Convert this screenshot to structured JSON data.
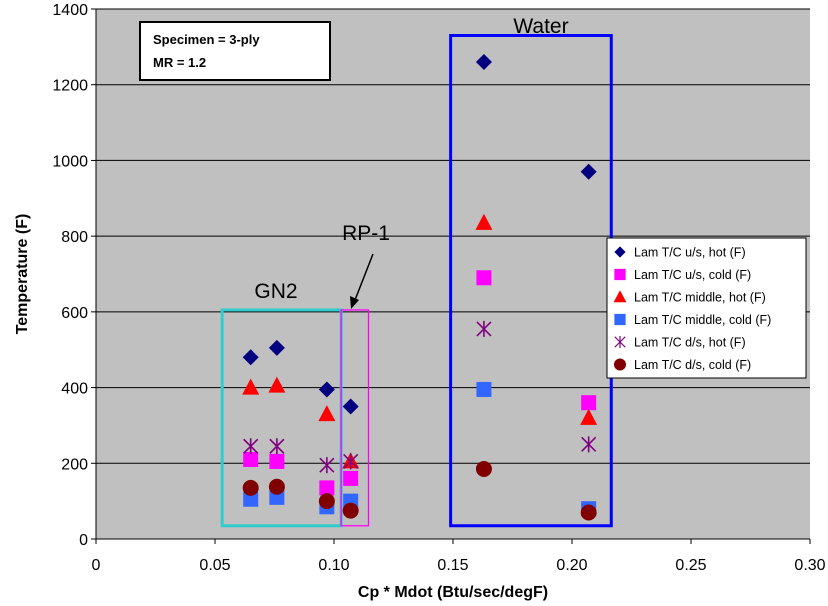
{
  "chart_data": {
    "type": "scatter",
    "title": "",
    "xlabel": "Cp * Mdot (Btu/sec/degF)",
    "ylabel": "Temperature (F)",
    "xlim": [
      0,
      0.3
    ],
    "ylim": [
      0,
      1400
    ],
    "xticks": [
      0,
      0.05,
      0.1,
      0.15,
      0.2,
      0.25,
      0.3
    ],
    "xtick_labels": [
      "0",
      "0.05",
      "0.10",
      "0.15",
      "0.20",
      "0.25",
      "0.30"
    ],
    "yticks": [
      0,
      200,
      400,
      600,
      800,
      1000,
      1200,
      1400
    ],
    "ytick_labels": [
      "0",
      "200",
      "400",
      "600",
      "800",
      "1000",
      "1200",
      "1400"
    ],
    "grid": "horizontal",
    "plot_background": "#c0c0c0",
    "legend_position": "right",
    "series": [
      {
        "name": "Lam T/C u/s, hot (F)",
        "marker": "diamond",
        "color": "#000080",
        "x": [
          0.065,
          0.076,
          0.097,
          0.107,
          0.163,
          0.207
        ],
        "y": [
          480,
          505,
          395,
          350,
          1260,
          970
        ]
      },
      {
        "name": "Lam T/C u/s, cold (F)",
        "marker": "square",
        "color": "#ff00ff",
        "x": [
          0.065,
          0.076,
          0.097,
          0.107,
          0.163,
          0.207
        ],
        "y": [
          210,
          205,
          135,
          160,
          690,
          360
        ]
      },
      {
        "name": "Lam T/C middle, hot (F)",
        "marker": "triangle",
        "color": "#ff0000",
        "x": [
          0.065,
          0.076,
          0.097,
          0.107,
          0.163,
          0.207
        ],
        "y": [
          400,
          405,
          330,
          205,
          835,
          320
        ]
      },
      {
        "name": "Lam T/C middle, cold (F)",
        "marker": "square",
        "color": "#3366ff",
        "x": [
          0.065,
          0.076,
          0.097,
          0.107,
          0.163,
          0.207
        ],
        "y": [
          105,
          110,
          85,
          100,
          395,
          80
        ]
      },
      {
        "name": "Lam T/C d/s, hot (F)",
        "marker": "star",
        "color": "#800080",
        "x": [
          0.065,
          0.076,
          0.097,
          0.107,
          0.163,
          0.207
        ],
        "y": [
          245,
          245,
          195,
          205,
          555,
          250
        ]
      },
      {
        "name": "Lam T/C d/s, cold (F)",
        "marker": "circle",
        "color": "#800000",
        "x": [
          0.065,
          0.076,
          0.097,
          0.107,
          0.163,
          0.207
        ],
        "y": [
          135,
          138,
          100,
          75,
          185,
          70
        ]
      }
    ],
    "annotations": {
      "specimen_line1": "Specimen = 3-ply",
      "specimen_line2": "MR = 1.2",
      "groups": [
        {
          "label": "GN2",
          "color": "#33cccc",
          "x_range": [
            0.053,
            0.103
          ],
          "y_range": [
            35,
            605
          ]
        },
        {
          "label": "RP-1",
          "color": "#ff00ff",
          "x_range": [
            0.103,
            0.1145
          ],
          "y_range": [
            35,
            605
          ]
        },
        {
          "label": "Water",
          "color": "#0000ff",
          "x_range": [
            0.149,
            0.2165
          ],
          "y_range": [
            35,
            1330
          ]
        }
      ]
    }
  }
}
